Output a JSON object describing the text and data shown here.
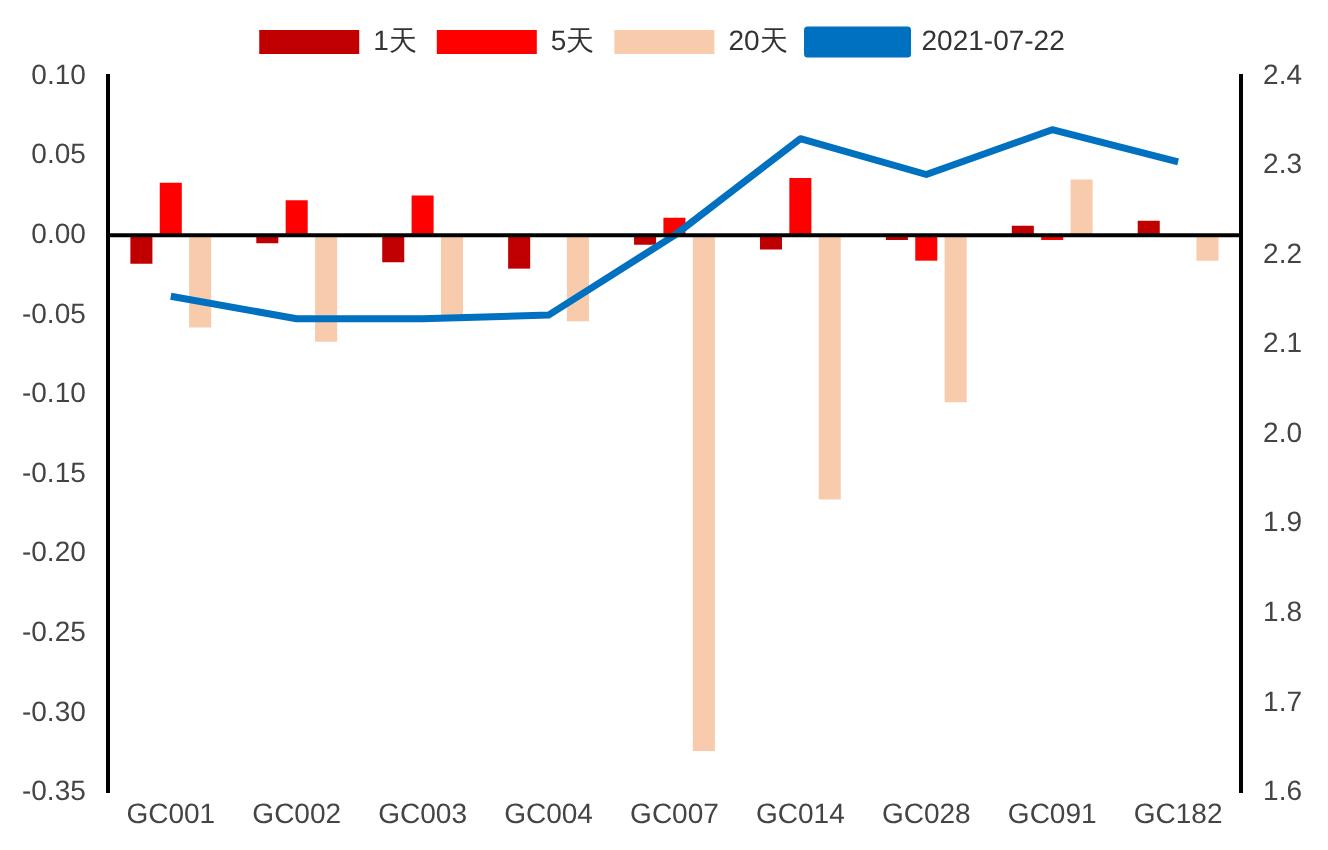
{
  "chart_data": {
    "type": "bar",
    "categories": [
      "GC001",
      "GC002",
      "GC003",
      "GC004",
      "GC007",
      "GC014",
      "GC028",
      "GC091",
      "GC182"
    ],
    "series": [
      {
        "name": "1天",
        "color": "#c00000",
        "values": [
          -0.018,
          -0.005,
          -0.017,
          -0.021,
          -0.006,
          -0.009,
          -0.003,
          0.006,
          0.009
        ]
      },
      {
        "name": "5天",
        "color": "#ff0000",
        "values": [
          0.033,
          0.022,
          0.025,
          0,
          0.011,
          0.036,
          -0.016,
          -0.003,
          null
        ]
      },
      {
        "name": "20天",
        "color": "#f8cbad",
        "values": [
          -0.058,
          -0.067,
          -0.051,
          -0.054,
          -0.324,
          -0.166,
          -0.105,
          0.035,
          -0.016
        ]
      },
      {
        "name": "2021-07-22",
        "type": "line",
        "axis": "y2",
        "color": "#0070c0",
        "values": [
          2.154,
          2.129,
          2.129,
          2.133,
          2.222,
          2.33,
          2.29,
          2.34,
          2.304
        ]
      }
    ],
    "ylim": [
      -0.35,
      0.1
    ],
    "yticks": [
      {
        "value": -0.35,
        "label": "-0.35"
      },
      {
        "value": -0.3,
        "label": "-0.30"
      },
      {
        "value": -0.25,
        "label": "-0.25"
      },
      {
        "value": -0.2,
        "label": "-0.20"
      },
      {
        "value": -0.15,
        "label": "-0.15"
      },
      {
        "value": -0.1,
        "label": "-0.10"
      },
      {
        "value": -0.05,
        "label": "-0.05"
      },
      {
        "value": 0,
        "label": "0.00"
      },
      {
        "value": 0.05,
        "label": "0.05"
      },
      {
        "value": 0.1,
        "label": "0.10"
      }
    ],
    "y2lim": [
      1.6,
      2.4
    ],
    "y2ticks": [
      {
        "value": 1.6,
        "label": "1.6"
      },
      {
        "value": 1.7,
        "label": "1.7"
      },
      {
        "value": 1.8,
        "label": "1.8"
      },
      {
        "value": 1.9,
        "label": "1.9"
      },
      {
        "value": 2,
        "label": "2.0"
      },
      {
        "value": 2.1,
        "label": "2.1"
      },
      {
        "value": 2.2,
        "label": "2.2"
      },
      {
        "value": 2.3,
        "label": "2.3"
      },
      {
        "value": 2.4,
        "label": "2.4"
      }
    ],
    "ref_lines": [
      {
        "axis": "y",
        "value": 0,
        "color": "#000000"
      }
    ],
    "grid": false,
    "legend": "top",
    "marker": "none"
  }
}
